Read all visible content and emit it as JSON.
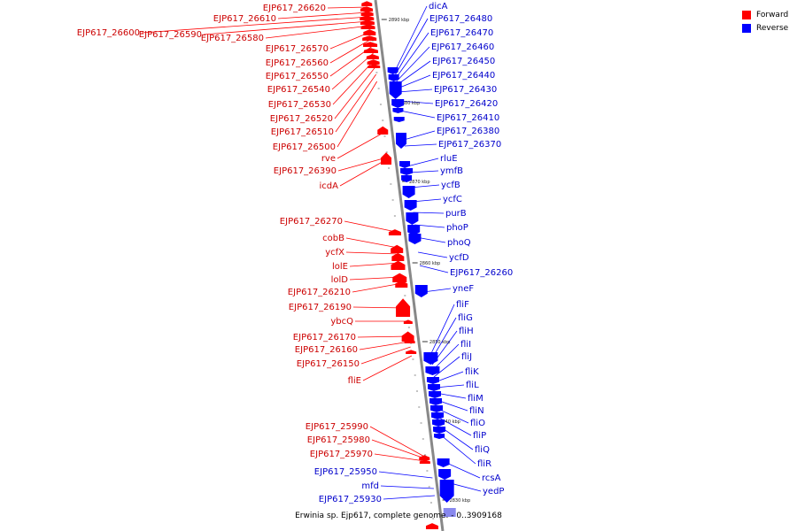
{
  "caption": "Erwinia sp. Ejp617, complete genome. - 0..3909168",
  "legend": [
    {
      "label": "Forward",
      "color": "#ff0000"
    },
    {
      "label": "Reverse",
      "color": "#0000ff"
    }
  ],
  "colors": {
    "forward": "#ff0000",
    "reverse": "#0000ff",
    "forward_text": "#cc0000",
    "reverse_text": "#0000cc",
    "backbone": "#888888"
  },
  "ticks": [
    "2890 kbp",
    "2880 kbp",
    "2870 kbp",
    "2860 kbp",
    "2850 kbp",
    "2840 kbp",
    "2830 kbp"
  ],
  "forward_genes": [
    "EJP617_26620",
    "EJP617_26610",
    "EJP617_26600",
    "EJP617_26590",
    "EJP617_26580",
    "EJP617_26570",
    "EJP617_26560",
    "EJP617_26550",
    "EJP617_26540",
    "EJP617_26530",
    "EJP617_26520",
    "EJP617_26510",
    "EJP617_26500",
    "rve",
    "EJP617_26390",
    "icdA",
    "EJP617_26270",
    "cobB",
    "ycfX",
    "lolE",
    "lolD",
    "EJP617_26210",
    "EJP617_26190",
    "ybcQ",
    "EJP617_26170",
    "EJP617_26160",
    "EJP617_26150",
    "fliE",
    "EJP617_25990",
    "EJP617_25980",
    "EJP617_25970"
  ],
  "reverse_genes": [
    "dicA",
    "EJP617_26480",
    "EJP617_26470",
    "EJP617_26460",
    "EJP617_26450",
    "EJP617_26440",
    "EJP617_26430",
    "EJP617_26420",
    "EJP617_26410",
    "EJP617_26380",
    "EJP617_26370",
    "rluE",
    "ymfB",
    "ycfB",
    "ycfC",
    "purB",
    "phoP",
    "phoQ",
    "ycfD",
    "EJP617_26260",
    "yneF",
    "fliF",
    "fliG",
    "fliH",
    "fliI",
    "fliJ",
    "fliK",
    "fliL",
    "fliM",
    "fliN",
    "fliO",
    "fliP",
    "fliQ",
    "fliR",
    "rcsA",
    "yedP"
  ],
  "reverse_genes_left": [
    "EJP617_25950",
    "mfd",
    "EJP617_25930"
  ]
}
